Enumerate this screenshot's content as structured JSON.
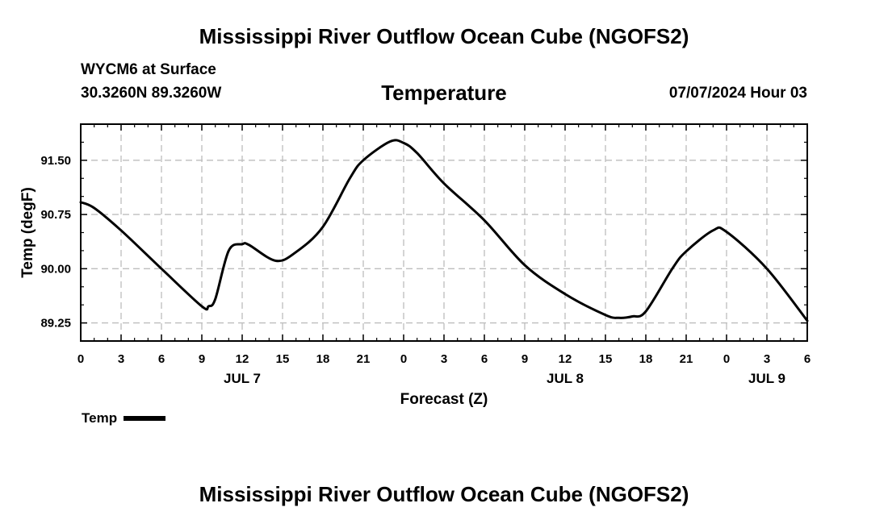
{
  "header": {
    "title": "Mississippi River Outflow Ocean Cube (NGOFS2)",
    "station": "WYCM6 at Surface",
    "coords": "30.3260N  89.3260W",
    "chart_title": "Temperature",
    "datetime": "07/07/2024 Hour 03"
  },
  "footer": {
    "title": "Mississippi River Outflow Ocean Cube (NGOFS2)"
  },
  "legend": {
    "label": "Temp"
  },
  "chart_data": {
    "type": "line",
    "title": "Temperature",
    "xlabel": "Forecast (Z)",
    "ylabel": "Temp (degF)",
    "xlim": [
      0,
      54
    ],
    "ylim": [
      89.0,
      92.0
    ],
    "y_ticks": [
      89.25,
      90.0,
      90.75,
      91.5
    ],
    "y_tick_labels": [
      "89.25",
      "90.00",
      "90.75",
      "91.50"
    ],
    "x_ticks": [
      0,
      3,
      6,
      9,
      12,
      15,
      18,
      21,
      24,
      27,
      30,
      33,
      36,
      39,
      42,
      45,
      48,
      51,
      54
    ],
    "x_tick_labels": [
      "0",
      "3",
      "6",
      "9",
      "12",
      "15",
      "18",
      "21",
      "0",
      "3",
      "6",
      "9",
      "12",
      "15",
      "18",
      "21",
      "0",
      "3",
      "6"
    ],
    "date_labels": [
      {
        "x": 12,
        "label": "JUL 7"
      },
      {
        "x": 36,
        "label": "JUL 8"
      },
      {
        "x": 51,
        "label": "JUL 9"
      }
    ],
    "grid": true,
    "series": [
      {
        "name": "Temp",
        "color": "#000000",
        "x": [
          0,
          1,
          3,
          6,
          9,
          9.5,
          10,
          11,
          12,
          12.5,
          14.5,
          16,
          18,
          20,
          21,
          23,
          24,
          25,
          27,
          30,
          33,
          36,
          39,
          40,
          41,
          42,
          44,
          45,
          47,
          48,
          51,
          54
        ],
        "y": [
          90.92,
          90.84,
          90.53,
          90.0,
          89.48,
          89.48,
          89.58,
          90.25,
          90.34,
          90.33,
          90.11,
          90.23,
          90.58,
          91.25,
          91.5,
          91.76,
          91.74,
          91.6,
          91.18,
          90.67,
          90.05,
          89.65,
          89.36,
          89.32,
          89.34,
          89.41,
          90.01,
          90.24,
          90.53,
          90.51,
          90.0,
          89.28
        ]
      }
    ]
  }
}
